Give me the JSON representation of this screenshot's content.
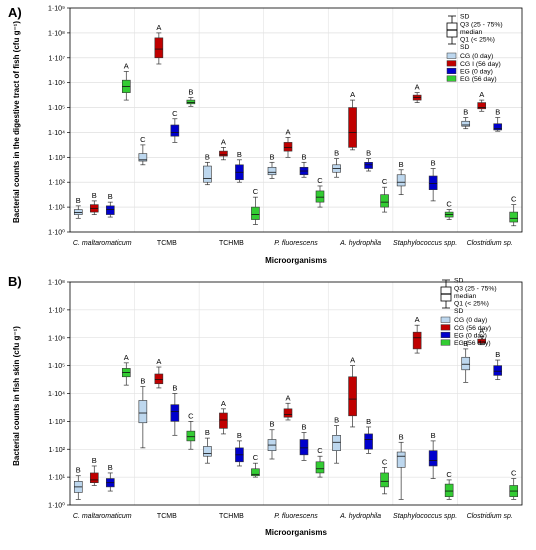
{
  "chart_data": [
    {
      "type": "box",
      "panel_label": "A)",
      "ylabel": "Bacterial counts in the digestive tract of fish (cfu g⁻¹)",
      "xlabel": "Microorganisms",
      "yscale": "log10",
      "ylim_exponents": [
        0,
        9
      ],
      "ytick_labels": [
        "1·10⁰",
        "1·10¹",
        "1·10²",
        "1·10³",
        "1·10⁴",
        "1·10⁵",
        "1·10⁶",
        "1·10⁷",
        "1·10⁸",
        "1·10⁹"
      ],
      "categories": [
        "C. maltaromaticum",
        "TCMB",
        "TCHMB",
        "P. fluorescens",
        "A. hydrophila",
        "Staphylococcus spp.",
        "Clostridium sp."
      ],
      "italic_categories": [
        true,
        false,
        false,
        true,
        true,
        true,
        true
      ],
      "legend_items": [
        "SD",
        "Q3 (25 - 75%)",
        "median",
        "Q1 (< 25%)",
        "SD"
      ],
      "series": [
        {
          "name": "CG (0 day)",
          "color": "#bdd7ee",
          "min": [
            0.55,
            2.7,
            1.9,
            2.15,
            2.2,
            1.5,
            4.15
          ],
          "q1": [
            0.7,
            2.85,
            2.0,
            2.3,
            2.4,
            1.85,
            4.25
          ],
          "median": [
            0.78,
            2.9,
            2.15,
            2.4,
            2.55,
            2.0,
            4.3
          ],
          "q3": [
            0.9,
            3.15,
            2.65,
            2.6,
            2.7,
            2.3,
            4.45
          ],
          "max": [
            1.05,
            3.5,
            2.8,
            2.8,
            2.95,
            2.5,
            4.6
          ],
          "letters": [
            "B",
            "C",
            "B",
            "B",
            "B",
            "B",
            "B"
          ]
        },
        {
          "name": "CG I (56 day)",
          "color": "#c00000",
          "min": [
            0.7,
            6.75,
            2.9,
            3.0,
            3.3,
            5.2,
            4.85
          ],
          "q1": [
            0.8,
            7.0,
            3.05,
            3.25,
            3.4,
            5.3,
            4.95
          ],
          "median": [
            0.95,
            7.35,
            3.1,
            3.4,
            4.0,
            5.4,
            5.0
          ],
          "q3": [
            1.1,
            7.8,
            3.25,
            3.6,
            5.0,
            5.5,
            5.2
          ],
          "max": [
            1.25,
            8.0,
            3.4,
            3.8,
            5.3,
            5.6,
            5.3
          ],
          "letters": [
            "B",
            "A",
            "A",
            "A",
            "A",
            "A",
            "A"
          ]
        },
        {
          "name": "EG (0 day)",
          "color": "#0000cc",
          "min": [
            0.6,
            3.6,
            2.0,
            2.2,
            2.45,
            1.25,
            4.05
          ],
          "q1": [
            0.7,
            3.85,
            2.1,
            2.3,
            2.55,
            1.7,
            4.1
          ],
          "median": [
            0.9,
            4.0,
            2.4,
            2.45,
            2.7,
            1.95,
            4.15
          ],
          "q3": [
            1.05,
            4.3,
            2.7,
            2.6,
            2.8,
            2.25,
            4.35
          ],
          "max": [
            1.2,
            4.55,
            2.9,
            2.8,
            2.95,
            2.55,
            4.6
          ],
          "letters": [
            "B",
            "C",
            "B",
            "B",
            "B",
            "B",
            "B"
          ]
        },
        {
          "name": "EG (56 day)",
          "color": "#33cc33",
          "min": [
            5.3,
            5.05,
            0.3,
            1.0,
            0.8,
            0.5,
            0.25
          ],
          "q1": [
            5.6,
            5.15,
            0.5,
            1.2,
            1.0,
            0.6,
            0.4
          ],
          "median": [
            5.85,
            5.2,
            0.7,
            1.4,
            1.2,
            0.7,
            0.55
          ],
          "q3": [
            6.1,
            5.3,
            1.0,
            1.65,
            1.5,
            0.8,
            0.8
          ],
          "max": [
            6.45,
            5.4,
            1.4,
            1.85,
            1.8,
            0.9,
            1.1
          ],
          "letters": [
            "A",
            "B",
            "C",
            "C",
            "C",
            "C",
            "C"
          ]
        }
      ]
    },
    {
      "type": "box",
      "panel_label": "B)",
      "ylabel": "Bacterial counts in fish skin (cfu g⁻¹)",
      "xlabel": "Microorganisms",
      "yscale": "log10",
      "ylim_exponents": [
        0,
        8
      ],
      "ytick_labels": [
        "1·10⁰",
        "1·10¹",
        "1·10²",
        "1·10³",
        "1·10⁴",
        "1·10⁵",
        "1·10⁶",
        "1·10⁷",
        "1·10⁸"
      ],
      "categories": [
        "C. maltaromaticum",
        "TCMB",
        "TCHMB",
        "P. fluorescens",
        "A. hydrophila",
        "Staphylococcus spp.",
        "Clostridium sp."
      ],
      "italic_categories": [
        true,
        false,
        false,
        true,
        true,
        true,
        true
      ],
      "legend_items": [
        "SD",
        "Q3 (25 - 75%)",
        "median",
        "Q1 (< 25%)",
        "SD"
      ],
      "series": [
        {
          "name": "CG (0 day)",
          "color": "#bdd7ee",
          "min": [
            0.2,
            2.05,
            1.5,
            1.65,
            1.5,
            0.2,
            4.4
          ],
          "q1": [
            0.45,
            2.95,
            1.75,
            1.95,
            1.95,
            1.35,
            4.85
          ],
          "median": [
            0.65,
            3.3,
            1.85,
            2.15,
            2.25,
            1.75,
            5.05
          ],
          "q3": [
            0.85,
            3.75,
            2.1,
            2.35,
            2.5,
            1.9,
            5.3
          ],
          "max": [
            1.05,
            4.25,
            2.4,
            2.7,
            2.85,
            2.25,
            5.6
          ],
          "letters": [
            "B",
            "B",
            "B",
            "B",
            "B",
            "B",
            "B"
          ]
        },
        {
          "name": "CG (56 day)",
          "color": "#c00000",
          "min": [
            0.7,
            4.2,
            2.55,
            3.05,
            2.8,
            5.45,
            5.75
          ],
          "q1": [
            0.8,
            4.35,
            2.75,
            3.15,
            3.2,
            5.6,
            5.8
          ],
          "median": [
            0.9,
            4.5,
            3.05,
            3.25,
            3.8,
            6.0,
            5.85
          ],
          "q3": [
            1.15,
            4.7,
            3.3,
            3.45,
            4.6,
            6.2,
            5.95
          ],
          "max": [
            1.4,
            4.95,
            3.45,
            3.65,
            5.0,
            6.45,
            6.05
          ],
          "letters": [
            "B",
            "A",
            "A",
            "A",
            "A",
            "A",
            "A"
          ]
        },
        {
          "name": "EG (0 day)",
          "color": "#0000cc",
          "min": [
            0.5,
            2.5,
            1.4,
            1.6,
            1.85,
            0.95,
            4.5
          ],
          "q1": [
            0.65,
            3.0,
            1.55,
            1.8,
            2.0,
            1.4,
            4.65
          ],
          "median": [
            0.8,
            3.35,
            1.8,
            2.05,
            2.35,
            1.6,
            4.8
          ],
          "q3": [
            0.95,
            3.6,
            2.05,
            2.35,
            2.55,
            1.95,
            5.0
          ],
          "max": [
            1.15,
            4.0,
            2.3,
            2.6,
            2.8,
            2.3,
            5.2
          ],
          "letters": [
            "B",
            "B",
            "B",
            "B",
            "B",
            "B",
            "B"
          ]
        },
        {
          "name": "EG (56 day)",
          "color": "#33cc33",
          "min": [
            4.3,
            2.0,
            1.0,
            1.0,
            0.4,
            0.2,
            0.2
          ],
          "q1": [
            4.6,
            2.3,
            1.05,
            1.15,
            0.65,
            0.3,
            0.3
          ],
          "median": [
            4.75,
            2.45,
            1.1,
            1.3,
            0.85,
            0.5,
            0.5
          ],
          "q3": [
            4.9,
            2.65,
            1.3,
            1.55,
            1.15,
            0.75,
            0.7
          ],
          "max": [
            5.1,
            3.0,
            1.5,
            1.75,
            1.35,
            0.9,
            0.95
          ],
          "letters": [
            "A",
            "C",
            "C",
            "C",
            "C",
            "C",
            "C"
          ]
        }
      ]
    }
  ]
}
